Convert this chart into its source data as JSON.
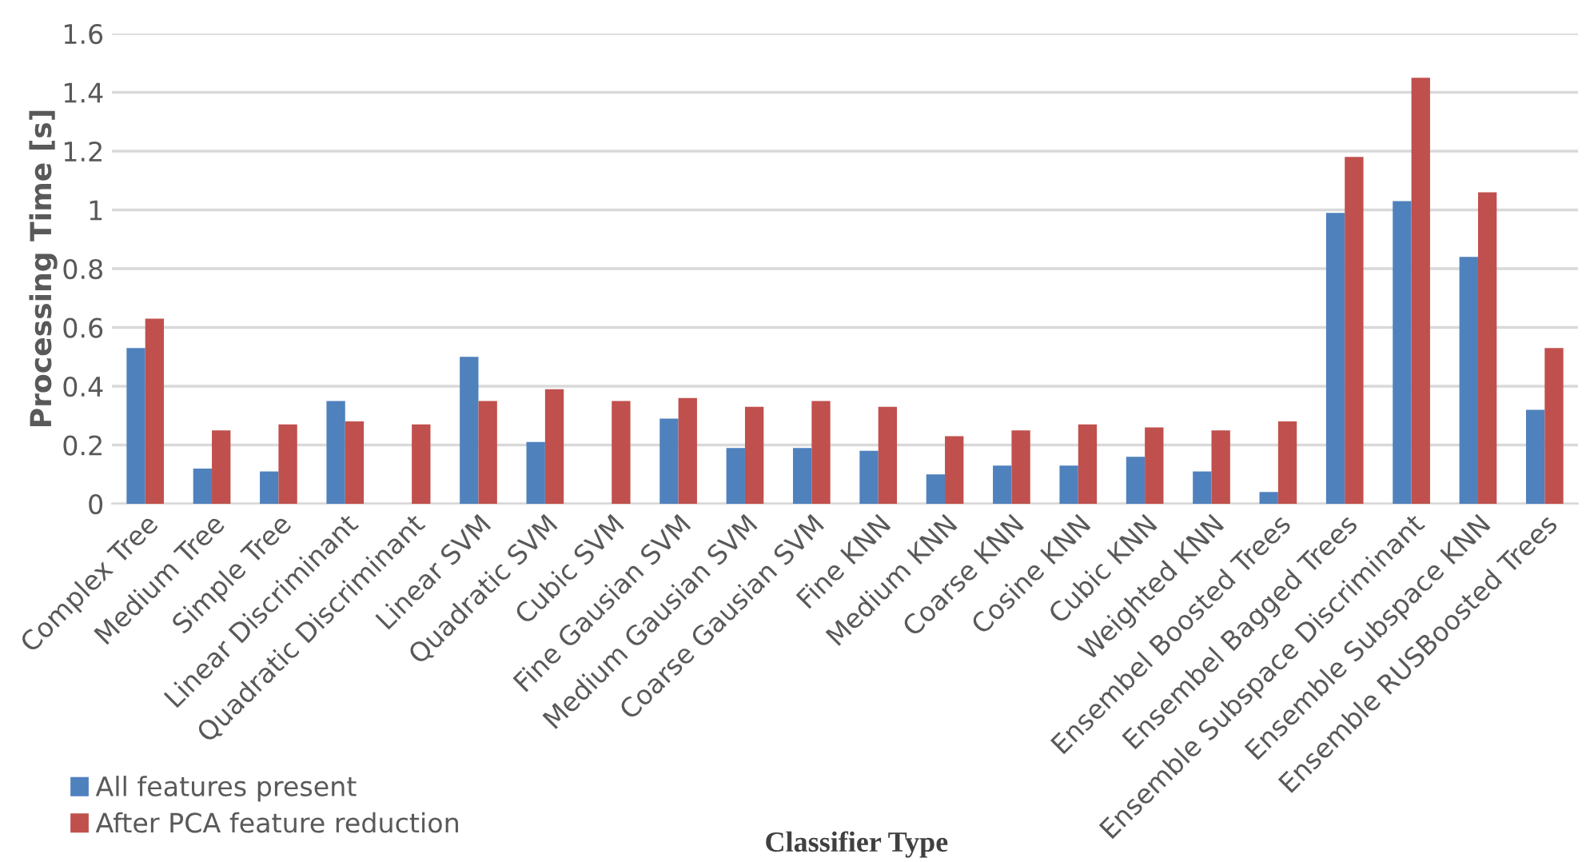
{
  "chart_data": {
    "type": "bar",
    "xlabel": "Classifier Type",
    "ylabel": "Processing Time [s]",
    "categories": [
      "Complex Tree",
      "Medium Tree",
      "Simple Tree",
      "Linear Discriminant",
      "Quadratic Discriminant",
      "Linear SVM",
      "Quadratic SVM",
      "Cubic SVM",
      "Fine Gausian SVM",
      "Medium Gausian SVM",
      "Coarse Gausian SVM",
      "Fine KNN",
      "Medium KNN",
      "Coarse KNN",
      "Cosine KNN",
      "Cubic KNN",
      "Weighted KNN",
      "Ensembel Boosted Trees",
      "Ensembel Bagged Trees",
      "Ensemble Subspace Discriminant",
      "Ensemble Subspace KNN",
      "Ensemble RUSBoosted Trees"
    ],
    "series": [
      {
        "name": "All features present",
        "color": "#4f81bd",
        "values": [
          0.53,
          0.12,
          0.11,
          0.35,
          0,
          0.5,
          0.21,
          0,
          0.29,
          0.19,
          0.19,
          0.18,
          0.1,
          0.13,
          0.13,
          0.16,
          0.11,
          0.04,
          0.99,
          1.03,
          0.84,
          0.32
        ]
      },
      {
        "name": "After PCA feature reduction",
        "color": "#c0504d",
        "values": [
          0.63,
          0.25,
          0.27,
          0.28,
          0.27,
          0.35,
          0.39,
          0.35,
          0.36,
          0.33,
          0.35,
          0.33,
          0.23,
          0.25,
          0.27,
          0.26,
          0.25,
          0.28,
          1.18,
          1.45,
          1.06,
          0.53
        ]
      }
    ],
    "ylim": [
      0,
      1.6
    ],
    "yticks": [
      0,
      0.2,
      0.4,
      0.6,
      0.8,
      1,
      1.2,
      1.4,
      1.6
    ],
    "grid": "y",
    "legend": "bottom left"
  }
}
